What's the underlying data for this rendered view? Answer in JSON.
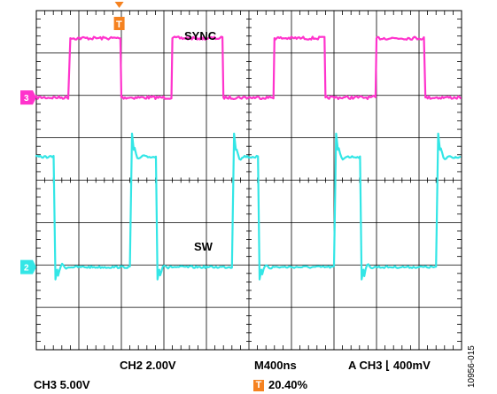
{
  "chart_data": {
    "type": "line",
    "title": "",
    "grid": true,
    "grid_divisions": {
      "x": 10,
      "y": 8
    },
    "x_unit_per_div": "400ns",
    "xlim": [
      0,
      10
    ],
    "ylim": [
      -4,
      4
    ],
    "series": [
      {
        "name": "SYNC",
        "channel": "3",
        "color": "#ff33cc",
        "marker_level": 1.95,
        "low": 1.95,
        "high": 3.35,
        "rising_edges": [
          0.8,
          3.2,
          5.6,
          8.0
        ],
        "falling_edges": [
          2.0,
          4.4,
          6.8,
          9.15
        ]
      },
      {
        "name": "SW",
        "channel": "2",
        "color": "#33e6e6",
        "marker_level": -2.05,
        "low": -2.05,
        "high": 0.55,
        "ringing_peak": 1.1,
        "rising_edges": [
          2.25,
          4.65,
          7.05,
          9.45
        ],
        "falling_edges": [
          0.45,
          2.85,
          5.25,
          7.65
        ]
      }
    ],
    "trigger": {
      "marker": "T",
      "position_div": 1.95,
      "percent_text": "20.40%"
    },
    "readouts": {
      "ch2_scale": "CH2  2.00V",
      "ch3_scale": "CH3  5.00V",
      "timebase": "M400ns",
      "trigger_setting": "A  CH3  ⌊  400mV"
    }
  },
  "figure_id": "10956-015",
  "colors": {
    "trigger": "#f58220",
    "grid": "#000000"
  }
}
